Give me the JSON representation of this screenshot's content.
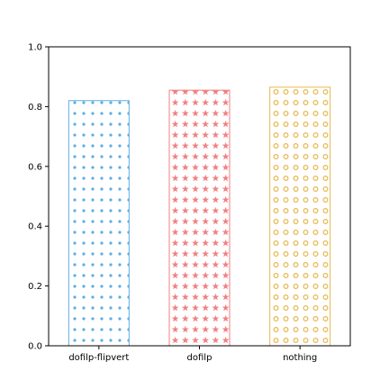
{
  "chart_data": {
    "type": "bar",
    "title": "",
    "xlabel": "",
    "ylabel": "",
    "ylim": [
      0,
      1.0
    ],
    "yticks": [
      "0.0",
      "0.2",
      "0.4",
      "0.6",
      "0.8",
      "1.0"
    ],
    "categories": [
      "dofilp-flipvert",
      "dofilp",
      "nothing"
    ],
    "values": [
      0.82,
      0.855,
      0.865
    ],
    "bar_fill": "none",
    "bar_colors": [
      "#5dade2",
      "#f08080",
      "#e6b84d"
    ],
    "hatches": [
      "dots",
      "stars",
      "circles"
    ],
    "grid": false,
    "legend": false
  }
}
